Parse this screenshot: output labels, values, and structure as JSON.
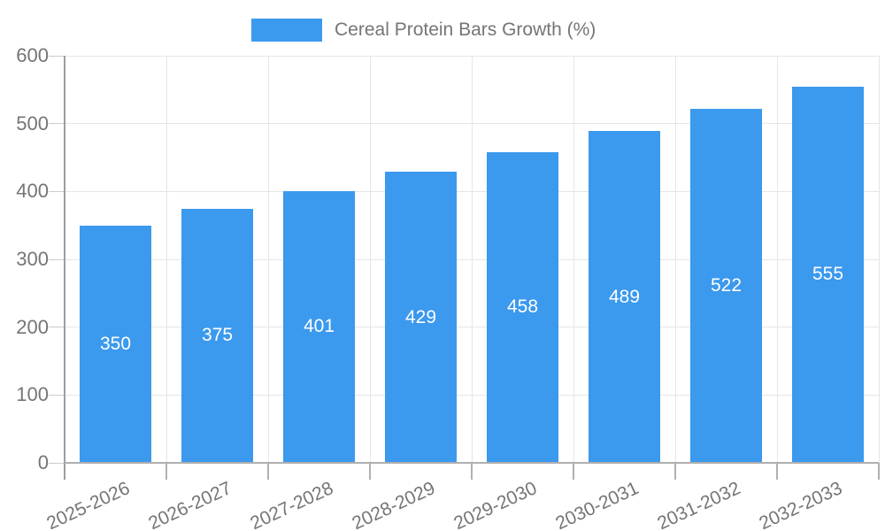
{
  "legend": {
    "label": "Cereal Protein Bars Growth (%)",
    "swatch_color": "#3b99ee"
  },
  "chart_data": {
    "type": "bar",
    "title": "Cereal Protein Bars Growth (%)",
    "categories": [
      "2025-2026",
      "2026-2027",
      "2027-2028",
      "2028-2029",
      "2029-2030",
      "2030-2031",
      "2031-2032",
      "2032-2033"
    ],
    "values": [
      350,
      375,
      401,
      429,
      458,
      489,
      522,
      555
    ],
    "xlabel": "",
    "ylabel": "",
    "ylim": [
      0,
      600
    ],
    "yticks": [
      0,
      100,
      200,
      300,
      400,
      500,
      600
    ],
    "grid": true,
    "legend_position": "top",
    "bar_color": "#3b99ee",
    "value_label_color": "#ffffff",
    "axis_label_color": "#757575",
    "gridline_color": "#e6e6e6"
  }
}
